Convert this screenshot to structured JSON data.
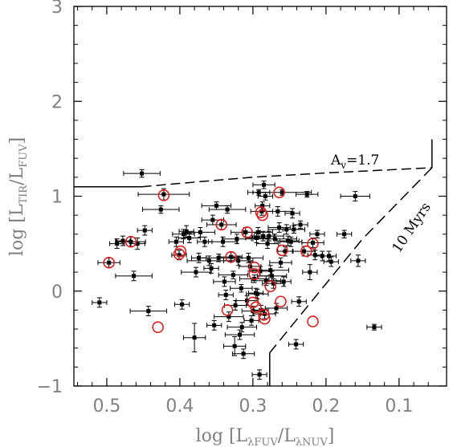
{
  "chart_data": {
    "type": "scatter",
    "xlabel": {
      "prefix": "log [L",
      "sub1": "λFUV",
      "mid": "/L",
      "sub2": "λNUV",
      "suffix": "]"
    },
    "ylabel": {
      "prefix": "log [L",
      "sub1": "TIR",
      "mid": "/L",
      "sub2": "FUV",
      "suffix": "]"
    },
    "xlim": [
      0.545,
      0.035
    ],
    "ylim": [
      -1,
      3
    ],
    "x_ticks": [
      0.5,
      0.4,
      0.3,
      0.2,
      0.1
    ],
    "x_tick_labels": [
      "0.5",
      "0.4",
      "0.3",
      "0.2",
      "0.1"
    ],
    "y_ticks": [
      -1,
      0,
      1,
      2,
      3
    ],
    "y_tick_labels": [
      "−1",
      "0",
      "1",
      "2",
      "3"
    ],
    "annotations": {
      "av_prefix": "A",
      "av_sub": "v",
      "av_suffix": "=1.7",
      "age": "10 Myrs"
    },
    "curves": {
      "solid_horizontal": [
        [
          0.545,
          1.1
        ],
        [
          0.452,
          1.1
        ]
      ],
      "dashed_av": [
        [
          0.452,
          1.1
        ],
        [
          0.4,
          1.135
        ],
        [
          0.3,
          1.2
        ],
        [
          0.2,
          1.245
        ],
        [
          0.055,
          1.3
        ]
      ],
      "solid_vertical": [
        [
          0.055,
          1.3
        ],
        [
          0.055,
          1.6
        ]
      ],
      "dashed_age": [
        [
          0.055,
          1.3
        ],
        [
          0.15,
          0.55
        ],
        [
          0.24,
          -0.3
        ],
        [
          0.277,
          -0.65
        ]
      ],
      "solid_age_end": [
        [
          0.277,
          -0.65
        ],
        [
          0.277,
          -1.0
        ]
      ]
    },
    "points": [
      [
        0.51,
        -0.12,
        0.01,
        0.05
      ],
      [
        0.497,
        0.3,
        0.015,
        0.05
      ],
      [
        0.486,
        0.5,
        0.01,
        0.05
      ],
      [
        0.478,
        0.53,
        0.01,
        0.05
      ],
      [
        0.467,
        0.52,
        0.02,
        0.05
      ],
      [
        0.463,
        0.16,
        0.025,
        0.05
      ],
      [
        0.458,
        0.5,
        0.01,
        0.06
      ],
      [
        0.452,
        1.24,
        0.025,
        0.04
      ],
      [
        0.448,
        0.64,
        0.01,
        0.05
      ],
      [
        0.443,
        -0.21,
        0.025,
        0.05
      ],
      [
        0.426,
        0.86,
        0.025,
        0.04
      ],
      [
        0.422,
        1.02,
        0.035,
        0.06
      ],
      [
        0.405,
        0.52,
        0.01,
        0.05
      ],
      [
        0.401,
        0.38,
        0.01,
        0.05
      ],
      [
        0.397,
        -0.14,
        0.01,
        0.05
      ],
      [
        0.395,
        0.6,
        0.015,
        0.05
      ],
      [
        0.391,
        0.63,
        0.01,
        0.06
      ],
      [
        0.387,
        0.56,
        0.015,
        0.05
      ],
      [
        0.38,
        -0.49,
        0.015,
        0.15
      ],
      [
        0.378,
        0.2,
        0.02,
        0.05
      ],
      [
        0.374,
        0.35,
        0.01,
        0.05
      ],
      [
        0.372,
        0.62,
        0.02,
        0.05
      ],
      [
        0.366,
        0.52,
        0.01,
        0.05
      ],
      [
        0.36,
        0.32,
        0.03,
        0.05
      ],
      [
        0.357,
        0.24,
        0.01,
        0.05
      ],
      [
        0.355,
        0.75,
        0.015,
        0.05
      ],
      [
        0.353,
        -0.36,
        0.01,
        0.05
      ],
      [
        0.35,
        0.9,
        0.02,
        0.04
      ],
      [
        0.347,
        0.35,
        0.025,
        0.04
      ],
      [
        0.343,
        0.7,
        0.02,
        0.05
      ],
      [
        0.341,
        0.52,
        0.02,
        0.05
      ],
      [
        0.339,
        0.1,
        0.015,
        0.05
      ],
      [
        0.337,
        -0.04,
        0.01,
        0.05
      ],
      [
        0.335,
        0.86,
        0.025,
        0.04
      ],
      [
        0.333,
        -0.27,
        0.02,
        0.05
      ],
      [
        0.33,
        0.36,
        0.015,
        0.05
      ],
      [
        0.327,
        0.17,
        0.02,
        0.04
      ],
      [
        0.325,
        -0.58,
        0.015,
        0.1
      ],
      [
        0.324,
        -0.15,
        0.015,
        0.05
      ],
      [
        0.322,
        0.55,
        0.02,
        0.05
      ],
      [
        0.32,
        0.32,
        0.02,
        0.05
      ],
      [
        0.318,
        -0.46,
        0.02,
        0.05
      ],
      [
        0.316,
        0.03,
        0.015,
        0.04
      ],
      [
        0.315,
        -0.38,
        0.02,
        0.05
      ],
      [
        0.313,
        -0.66,
        0.015,
        0.05
      ],
      [
        0.31,
        0.62,
        0.02,
        0.05
      ],
      [
        0.308,
        -0.1,
        0.015,
        0.05
      ],
      [
        0.306,
        0.35,
        0.02,
        0.05
      ],
      [
        0.304,
        0.26,
        0.015,
        0.05
      ],
      [
        0.302,
        -0.31,
        0.01,
        0.05
      ],
      [
        0.3,
        -0.21,
        0.015,
        0.05
      ],
      [
        0.298,
        0.13,
        0.02,
        0.04
      ],
      [
        0.296,
        -0.02,
        0.01,
        0.05
      ],
      [
        0.295,
        0.56,
        0.015,
        0.05
      ],
      [
        0.294,
        -0.03,
        0.015,
        0.05
      ],
      [
        0.293,
        0.62,
        0.02,
        0.05
      ],
      [
        0.292,
        1.04,
        0.015,
        0.03
      ],
      [
        0.291,
        -0.88,
        0.01,
        0.05
      ],
      [
        0.29,
        0.21,
        0.015,
        0.05
      ],
      [
        0.289,
        -0.2,
        0.01,
        0.05
      ],
      [
        0.288,
        0.84,
        0.015,
        0.04
      ],
      [
        0.287,
        0.9,
        0.01,
        0.04
      ],
      [
        0.286,
        0.58,
        0.015,
        0.05
      ],
      [
        0.285,
        1.12,
        0.015,
        0.04
      ],
      [
        0.284,
        -0.24,
        0.015,
        0.05
      ],
      [
        0.283,
        1.0,
        0.01,
        0.04
      ],
      [
        0.282,
        0.11,
        0.02,
        0.05
      ],
      [
        0.28,
        0.5,
        0.015,
        0.05
      ],
      [
        0.278,
        0.58,
        0.02,
        0.05
      ],
      [
        0.276,
        0.22,
        0.025,
        0.05
      ],
      [
        0.274,
        0.16,
        0.02,
        0.05
      ],
      [
        0.272,
        0.08,
        0.015,
        0.05
      ],
      [
        0.27,
        0.55,
        0.03,
        0.05
      ],
      [
        0.268,
        -0.18,
        0.015,
        0.05
      ],
      [
        0.266,
        0.84,
        0.02,
        0.05
      ],
      [
        0.264,
        0.67,
        0.015,
        0.05
      ],
      [
        0.262,
        0.3,
        0.015,
        0.05
      ],
      [
        0.26,
        1.04,
        0.04,
        0.03
      ],
      [
        0.258,
        0.1,
        0.01,
        0.05
      ],
      [
        0.256,
        0.42,
        0.01,
        0.05
      ],
      [
        0.254,
        0.65,
        0.025,
        0.05
      ],
      [
        0.252,
        0.53,
        0.015,
        0.05
      ],
      [
        0.248,
        0.52,
        0.015,
        0.05
      ],
      [
        0.246,
        0.82,
        0.01,
        0.05
      ],
      [
        0.244,
        0.65,
        0.015,
        0.04
      ],
      [
        0.241,
        -0.56,
        0.01,
        0.05
      ],
      [
        0.237,
        -0.11,
        0.01,
        0.05
      ],
      [
        0.235,
        0.7,
        0.01,
        0.04
      ],
      [
        0.23,
        0.42,
        0.015,
        0.05
      ],
      [
        0.226,
        1.02,
        0.015,
        0.03
      ],
      [
        0.222,
        0.2,
        0.01,
        0.08
      ],
      [
        0.218,
        0.51,
        0.015,
        0.05
      ],
      [
        0.215,
        0.38,
        0.01,
        0.05
      ],
      [
        0.212,
        0.6,
        0.01,
        0.04
      ],
      [
        0.205,
        0.37,
        0.01,
        0.05
      ],
      [
        0.196,
        0.37,
        0.01,
        0.05
      ],
      [
        0.193,
        0.31,
        0.01,
        0.05
      ],
      [
        0.175,
        0.6,
        0.01,
        0.04
      ],
      [
        0.16,
        1.0,
        0.02,
        0.05
      ],
      [
        0.156,
        0.32,
        0.01,
        0.06
      ],
      [
        0.134,
        -0.38,
        0.01,
        0.03
      ]
    ],
    "circled_points": [
      [
        0.497,
        0.3
      ],
      [
        0.467,
        0.52
      ],
      [
        0.43,
        -0.38
      ],
      [
        0.422,
        1.01
      ],
      [
        0.401,
        0.39
      ],
      [
        0.399,
        0.42
      ],
      [
        0.343,
        0.7
      ],
      [
        0.335,
        -0.2
      ],
      [
        0.33,
        0.36
      ],
      [
        0.308,
        0.62
      ],
      [
        0.3,
        -0.12
      ],
      [
        0.298,
        0.25
      ],
      [
        0.298,
        0.18
      ],
      [
        0.296,
        -0.17
      ],
      [
        0.289,
        0.83
      ],
      [
        0.287,
        0.8
      ],
      [
        0.285,
        -0.25
      ],
      [
        0.284,
        -0.29
      ],
      [
        0.276,
        0.05
      ],
      [
        0.264,
        1.04
      ],
      [
        0.262,
        -0.11
      ],
      [
        0.26,
        0.43
      ],
      [
        0.227,
        0.42
      ],
      [
        0.218,
        0.5
      ],
      [
        0.218,
        -0.32
      ]
    ],
    "colors": {
      "points": "#000000",
      "circles": "#d62020",
      "axis": "#000000",
      "tick_label": "#808080"
    }
  }
}
